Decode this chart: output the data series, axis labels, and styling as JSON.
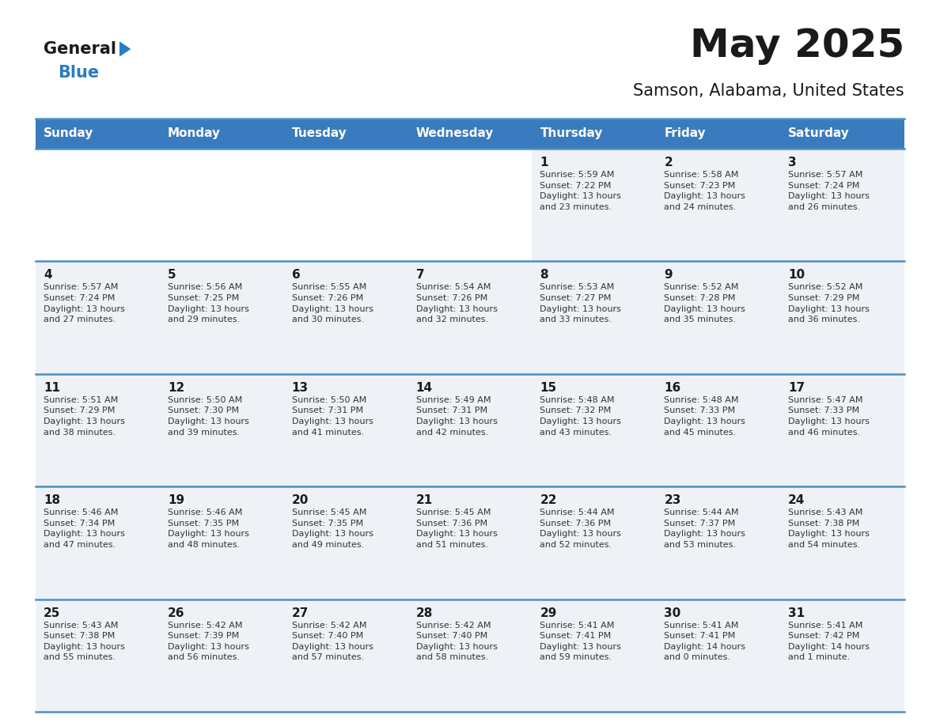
{
  "title": "May 2025",
  "subtitle": "Samson, Alabama, United States",
  "header_color": "#3a7bbf",
  "header_text_color": "#ffffff",
  "day_names": [
    "Sunday",
    "Monday",
    "Tuesday",
    "Wednesday",
    "Thursday",
    "Friday",
    "Saturday"
  ],
  "weeks": [
    [
      {
        "day": "",
        "info": ""
      },
      {
        "day": "",
        "info": ""
      },
      {
        "day": "",
        "info": ""
      },
      {
        "day": "",
        "info": ""
      },
      {
        "day": "1",
        "info": "Sunrise: 5:59 AM\nSunset: 7:22 PM\nDaylight: 13 hours\nand 23 minutes."
      },
      {
        "day": "2",
        "info": "Sunrise: 5:58 AM\nSunset: 7:23 PM\nDaylight: 13 hours\nand 24 minutes."
      },
      {
        "day": "3",
        "info": "Sunrise: 5:57 AM\nSunset: 7:24 PM\nDaylight: 13 hours\nand 26 minutes."
      }
    ],
    [
      {
        "day": "4",
        "info": "Sunrise: 5:57 AM\nSunset: 7:24 PM\nDaylight: 13 hours\nand 27 minutes."
      },
      {
        "day": "5",
        "info": "Sunrise: 5:56 AM\nSunset: 7:25 PM\nDaylight: 13 hours\nand 29 minutes."
      },
      {
        "day": "6",
        "info": "Sunrise: 5:55 AM\nSunset: 7:26 PM\nDaylight: 13 hours\nand 30 minutes."
      },
      {
        "day": "7",
        "info": "Sunrise: 5:54 AM\nSunset: 7:26 PM\nDaylight: 13 hours\nand 32 minutes."
      },
      {
        "day": "8",
        "info": "Sunrise: 5:53 AM\nSunset: 7:27 PM\nDaylight: 13 hours\nand 33 minutes."
      },
      {
        "day": "9",
        "info": "Sunrise: 5:52 AM\nSunset: 7:28 PM\nDaylight: 13 hours\nand 35 minutes."
      },
      {
        "day": "10",
        "info": "Sunrise: 5:52 AM\nSunset: 7:29 PM\nDaylight: 13 hours\nand 36 minutes."
      }
    ],
    [
      {
        "day": "11",
        "info": "Sunrise: 5:51 AM\nSunset: 7:29 PM\nDaylight: 13 hours\nand 38 minutes."
      },
      {
        "day": "12",
        "info": "Sunrise: 5:50 AM\nSunset: 7:30 PM\nDaylight: 13 hours\nand 39 minutes."
      },
      {
        "day": "13",
        "info": "Sunrise: 5:50 AM\nSunset: 7:31 PM\nDaylight: 13 hours\nand 41 minutes."
      },
      {
        "day": "14",
        "info": "Sunrise: 5:49 AM\nSunset: 7:31 PM\nDaylight: 13 hours\nand 42 minutes."
      },
      {
        "day": "15",
        "info": "Sunrise: 5:48 AM\nSunset: 7:32 PM\nDaylight: 13 hours\nand 43 minutes."
      },
      {
        "day": "16",
        "info": "Sunrise: 5:48 AM\nSunset: 7:33 PM\nDaylight: 13 hours\nand 45 minutes."
      },
      {
        "day": "17",
        "info": "Sunrise: 5:47 AM\nSunset: 7:33 PM\nDaylight: 13 hours\nand 46 minutes."
      }
    ],
    [
      {
        "day": "18",
        "info": "Sunrise: 5:46 AM\nSunset: 7:34 PM\nDaylight: 13 hours\nand 47 minutes."
      },
      {
        "day": "19",
        "info": "Sunrise: 5:46 AM\nSunset: 7:35 PM\nDaylight: 13 hours\nand 48 minutes."
      },
      {
        "day": "20",
        "info": "Sunrise: 5:45 AM\nSunset: 7:35 PM\nDaylight: 13 hours\nand 49 minutes."
      },
      {
        "day": "21",
        "info": "Sunrise: 5:45 AM\nSunset: 7:36 PM\nDaylight: 13 hours\nand 51 minutes."
      },
      {
        "day": "22",
        "info": "Sunrise: 5:44 AM\nSunset: 7:36 PM\nDaylight: 13 hours\nand 52 minutes."
      },
      {
        "day": "23",
        "info": "Sunrise: 5:44 AM\nSunset: 7:37 PM\nDaylight: 13 hours\nand 53 minutes."
      },
      {
        "day": "24",
        "info": "Sunrise: 5:43 AM\nSunset: 7:38 PM\nDaylight: 13 hours\nand 54 minutes."
      }
    ],
    [
      {
        "day": "25",
        "info": "Sunrise: 5:43 AM\nSunset: 7:38 PM\nDaylight: 13 hours\nand 55 minutes."
      },
      {
        "day": "26",
        "info": "Sunrise: 5:42 AM\nSunset: 7:39 PM\nDaylight: 13 hours\nand 56 minutes."
      },
      {
        "day": "27",
        "info": "Sunrise: 5:42 AM\nSunset: 7:40 PM\nDaylight: 13 hours\nand 57 minutes."
      },
      {
        "day": "28",
        "info": "Sunrise: 5:42 AM\nSunset: 7:40 PM\nDaylight: 13 hours\nand 58 minutes."
      },
      {
        "day": "29",
        "info": "Sunrise: 5:41 AM\nSunset: 7:41 PM\nDaylight: 13 hours\nand 59 minutes."
      },
      {
        "day": "30",
        "info": "Sunrise: 5:41 AM\nSunset: 7:41 PM\nDaylight: 14 hours\nand 0 minutes."
      },
      {
        "day": "31",
        "info": "Sunrise: 5:41 AM\nSunset: 7:42 PM\nDaylight: 14 hours\nand 1 minute."
      }
    ]
  ],
  "cell_bg_color": "#eef2f7",
  "cell_bg_empty_color": "#ffffff",
  "grid_line_color": "#4a90c4",
  "text_color": "#333333",
  "day_number_color": "#1a1a1a",
  "info_text_color": "#333333",
  "logo_general_color": "#1a1a1a",
  "logo_blue_color": "#2a7dc0",
  "background_color": "#ffffff",
  "title_fontsize": 36,
  "subtitle_fontsize": 15,
  "header_fontsize": 11,
  "day_num_fontsize": 11,
  "info_fontsize": 8.0
}
